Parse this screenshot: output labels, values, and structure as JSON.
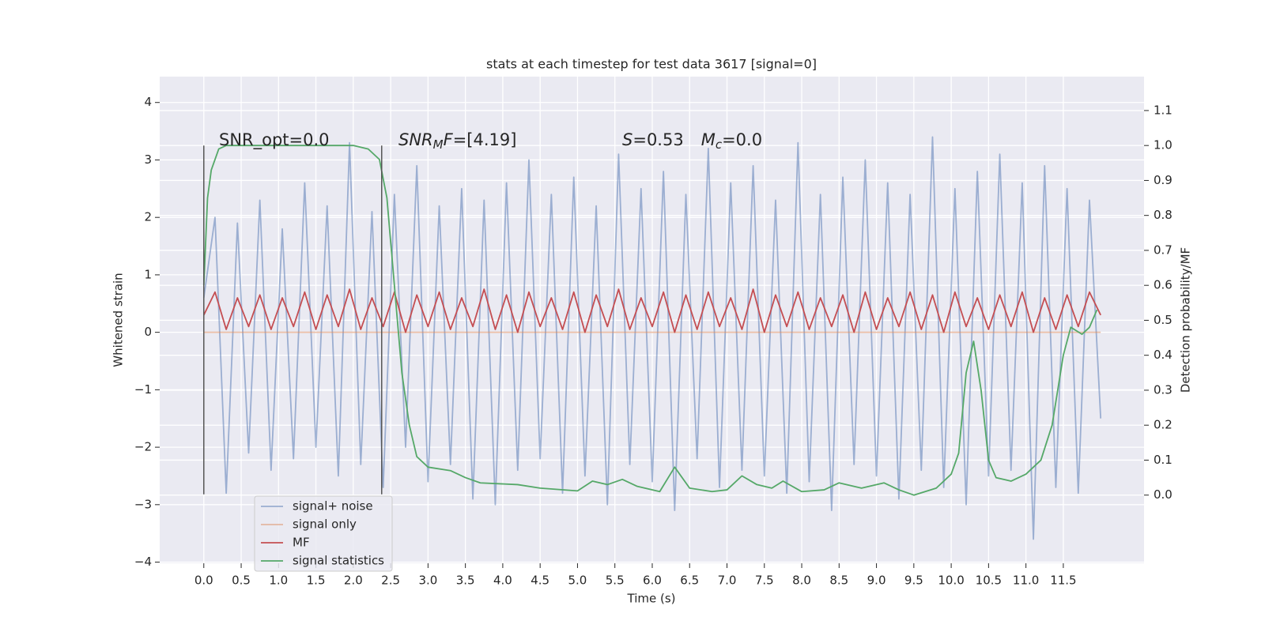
{
  "chart_data": {
    "type": "line",
    "title": "stats at each timestep for test data 3617 [signal=0]",
    "xlabel": "Time (s)",
    "ylabel": "Whitened strain",
    "y2label": "Detection probability/MF",
    "annotations": [
      {
        "parts": [
          "SNR_opt=0.0"
        ]
      },
      {
        "parts": [
          "SNR",
          "M",
          "F",
          "=[4.19]"
        ]
      },
      {
        "parts": [
          "S",
          "=0.53",
          "M",
          "c",
          "=0.0"
        ]
      }
    ],
    "vlines": {
      "x": [
        0,
        2.38
      ],
      "ymin": -2.82,
      "ymax": 3.25,
      "color": "#555555"
    },
    "xlim": [
      -0.59,
      12.58
    ],
    "ylim": [
      -4.02,
      4.45
    ],
    "y2lim": [
      -0.195,
      1.197
    ],
    "xticks": [
      {
        "value": 0,
        "label": "0.0"
      },
      0.5,
      {
        "value": 1,
        "label": "1.0"
      },
      1.5,
      {
        "value": 2,
        "label": "2.0"
      },
      2.5,
      {
        "value": 3,
        "label": "3.0"
      },
      3.5,
      {
        "value": 4,
        "label": "4.0"
      },
      4.5,
      {
        "value": 5,
        "label": "5.0"
      },
      5.5,
      {
        "value": 6,
        "label": "6.0"
      },
      6.5,
      {
        "value": 7,
        "label": "7.0"
      },
      7.5,
      {
        "value": 8,
        "label": "8.0"
      },
      8.5,
      {
        "value": 9,
        "label": "9.0"
      },
      9.5,
      {
        "value": 10,
        "label": "10.0"
      },
      10.5,
      {
        "value": 11,
        "label": "11.0"
      },
      11.5
    ],
    "yticks": [
      {
        "value": -4,
        "label": "−4"
      },
      {
        "value": -3,
        "label": "−3"
      },
      {
        "value": -2,
        "label": "−2"
      },
      {
        "value": -1,
        "label": "−1"
      },
      0,
      1,
      2,
      3,
      4
    ],
    "y2ticks": [
      {
        "value": 0,
        "label": "0.0"
      },
      0.1,
      0.2,
      0.3,
      0.4,
      0.5,
      0.6,
      0.7,
      0.8,
      0.9,
      {
        "value": 1,
        "label": "1.0"
      },
      1.1
    ],
    "grid": true,
    "legend": "lower left",
    "series": [
      {
        "name": "signal+ noise",
        "color": "#4c72b0",
        "opacity": 0.5,
        "x": [
          0,
          0.15,
          0.3,
          0.45,
          0.6,
          0.75,
          0.9,
          1.05,
          1.2,
          1.35,
          1.5,
          1.65,
          1.8,
          1.95,
          2.1,
          2.25,
          2.4,
          2.55,
          2.7,
          2.85,
          3.0,
          3.15,
          3.3,
          3.45,
          3.6,
          3.75,
          3.9,
          4.05,
          4.2,
          4.35,
          4.5,
          4.65,
          4.8,
          4.95,
          5.1,
          5.25,
          5.4,
          5.55,
          5.7,
          5.85,
          6.0,
          6.15,
          6.3,
          6.45,
          6.6,
          6.75,
          6.9,
          7.05,
          7.2,
          7.35,
          7.5,
          7.65,
          7.8,
          7.95,
          8.1,
          8.25,
          8.4,
          8.55,
          8.7,
          8.85,
          9.0,
          9.15,
          9.3,
          9.45,
          9.6,
          9.75,
          9.9,
          10.05,
          10.2,
          10.35,
          10.5,
          10.65,
          10.8,
          10.95,
          11.1,
          11.25,
          11.4,
          11.55,
          11.7,
          11.85,
          12.0
        ],
        "values": [
          0.6,
          2.0,
          -2.8,
          1.9,
          -2.1,
          2.3,
          -2.4,
          1.8,
          -2.2,
          2.6,
          -2.0,
          2.2,
          -2.5,
          3.3,
          -2.3,
          2.1,
          -2.7,
          2.4,
          -2.0,
          2.9,
          -2.6,
          2.2,
          -2.3,
          2.5,
          -2.9,
          2.3,
          -3.0,
          2.6,
          -2.4,
          3.0,
          -2.2,
          2.4,
          -2.8,
          2.7,
          -2.5,
          2.2,
          -3.0,
          3.1,
          -2.3,
          2.5,
          -2.6,
          2.8,
          -3.1,
          2.4,
          -2.2,
          3.2,
          -2.7,
          2.6,
          -2.4,
          2.9,
          -2.5,
          2.3,
          -2.8,
          3.3,
          -2.6,
          2.4,
          -3.1,
          2.7,
          -2.3,
          3.0,
          -2.5,
          2.6,
          -2.9,
          2.4,
          -2.4,
          3.4,
          -2.7,
          2.5,
          -3.0,
          2.8,
          -2.5,
          3.1,
          -2.4,
          2.6,
          -3.6,
          2.9,
          -2.7,
          2.5,
          -2.8,
          2.3,
          -1.5
        ]
      },
      {
        "name": "signal only",
        "color": "#dd8452",
        "opacity": 0.5,
        "x": [
          0,
          12.0
        ],
        "values": [
          0,
          0
        ]
      },
      {
        "name": "MF",
        "color": "#c44e52",
        "opacity": 1,
        "x": [
          0,
          0.15,
          0.3,
          0.45,
          0.6,
          0.75,
          0.9,
          1.05,
          1.2,
          1.35,
          1.5,
          1.65,
          1.8,
          1.95,
          2.1,
          2.25,
          2.4,
          2.55,
          2.7,
          2.85,
          3.0,
          3.15,
          3.3,
          3.45,
          3.6,
          3.75,
          3.9,
          4.05,
          4.2,
          4.35,
          4.5,
          4.65,
          4.8,
          4.95,
          5.1,
          5.25,
          5.4,
          5.55,
          5.7,
          5.85,
          6.0,
          6.15,
          6.3,
          6.45,
          6.6,
          6.75,
          6.9,
          7.05,
          7.2,
          7.35,
          7.5,
          7.65,
          7.8,
          7.95,
          8.1,
          8.25,
          8.4,
          8.55,
          8.7,
          8.85,
          9.0,
          9.15,
          9.3,
          9.45,
          9.6,
          9.75,
          9.9,
          10.05,
          10.2,
          10.35,
          10.5,
          10.65,
          10.8,
          10.95,
          11.1,
          11.25,
          11.4,
          11.55,
          11.7,
          11.85,
          12.0
        ],
        "values": [
          0.3,
          0.7,
          0.05,
          0.6,
          0.1,
          0.65,
          0.05,
          0.6,
          0.1,
          0.7,
          0.05,
          0.65,
          0.1,
          0.75,
          0.05,
          0.6,
          0.1,
          0.7,
          0.0,
          0.65,
          0.1,
          0.7,
          0.05,
          0.6,
          0.1,
          0.75,
          0.05,
          0.65,
          0.0,
          0.7,
          0.1,
          0.6,
          0.05,
          0.7,
          0.0,
          0.65,
          0.1,
          0.75,
          0.05,
          0.6,
          0.1,
          0.7,
          0.0,
          0.65,
          0.05,
          0.7,
          0.1,
          0.6,
          0.05,
          0.75,
          0.0,
          0.65,
          0.1,
          0.7,
          0.05,
          0.6,
          0.1,
          0.65,
          0.0,
          0.7,
          0.05,
          0.6,
          0.1,
          0.7,
          0.05,
          0.65,
          0.0,
          0.7,
          0.1,
          0.6,
          0.05,
          0.65,
          0.1,
          0.7,
          0.0,
          0.6,
          0.05,
          0.65,
          0.1,
          0.7,
          0.3
        ]
      },
      {
        "name": "signal statistics",
        "color": "#55a868",
        "opacity": 1,
        "axis": "y2",
        "x": [
          0,
          0.05,
          0.1,
          0.2,
          0.3,
          1.0,
          1.5,
          2.0,
          2.2,
          2.35,
          2.45,
          2.55,
          2.65,
          2.75,
          2.85,
          3.0,
          3.3,
          3.5,
          3.7,
          4.2,
          4.5,
          5.0,
          5.2,
          5.4,
          5.6,
          5.8,
          6.1,
          6.3,
          6.5,
          6.8,
          7.0,
          7.2,
          7.4,
          7.6,
          7.75,
          8.0,
          8.3,
          8.5,
          8.8,
          9.1,
          9.3,
          9.5,
          9.8,
          10.0,
          10.1,
          10.2,
          10.3,
          10.4,
          10.5,
          10.6,
          10.8,
          11.0,
          11.2,
          11.35,
          11.5,
          11.6,
          11.75,
          11.85,
          11.95
        ],
        "values": [
          0.6,
          0.85,
          0.93,
          0.99,
          1.0,
          1.0,
          1.0,
          1.0,
          0.99,
          0.96,
          0.85,
          0.6,
          0.35,
          0.2,
          0.11,
          0.08,
          0.07,
          0.05,
          0.035,
          0.03,
          0.02,
          0.012,
          0.04,
          0.03,
          0.045,
          0.025,
          0.01,
          0.08,
          0.02,
          0.01,
          0.015,
          0.055,
          0.03,
          0.02,
          0.04,
          0.01,
          0.015,
          0.035,
          0.02,
          0.035,
          0.015,
          0.0,
          0.02,
          0.06,
          0.12,
          0.35,
          0.44,
          0.3,
          0.1,
          0.05,
          0.04,
          0.06,
          0.1,
          0.2,
          0.4,
          0.48,
          0.46,
          0.48,
          0.53
        ]
      }
    ]
  }
}
